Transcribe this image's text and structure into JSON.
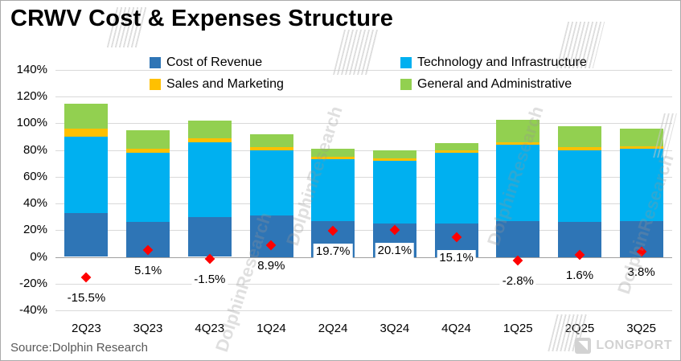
{
  "chart_data": {
    "type": "bar",
    "subtype": "stacked-columns-with-scatter-markers",
    "title": "CRWV Cost & Expenses Structure",
    "categories": [
      "2Q23",
      "3Q23",
      "4Q23",
      "1Q24",
      "2Q24",
      "3Q24",
      "4Q24",
      "1Q25",
      "2Q25",
      "3Q25"
    ],
    "series": [
      {
        "name": "Cost of Revenue",
        "color": "#2E75B6",
        "values": [
          33,
          26,
          30,
          31,
          27,
          25,
          25,
          27,
          26,
          27
        ]
      },
      {
        "name": "Technology and Infrastructure",
        "color": "#00B0F0",
        "values": [
          57,
          52,
          56,
          49,
          46,
          47,
          53,
          57,
          54,
          54
        ]
      },
      {
        "name": "Sales and Marketing",
        "color": "#FFC000",
        "values": [
          6,
          3,
          3,
          2,
          2,
          2,
          2,
          2,
          2,
          2
        ]
      },
      {
        "name": "General and Administrative",
        "color": "#92D050",
        "values": [
          19,
          14,
          13,
          10,
          6,
          6,
          5,
          17,
          16,
          13
        ]
      }
    ],
    "marker_series": {
      "color": "#FF0000",
      "values": [
        -15.5,
        5.1,
        -1.5,
        8.9,
        19.7,
        20.1,
        15.1,
        -2.8,
        1.6,
        3.8
      ],
      "labels": [
        "-15.5%",
        "5.1%",
        "-1.5%",
        "8.9%",
        "19.7%",
        "20.1%",
        "15.1%",
        "-2.8%",
        "1.6%",
        "3.8%"
      ]
    },
    "ylim": [
      -40,
      140
    ],
    "ytick_step": 20,
    "ytick_labels": [
      "140%",
      "120%",
      "100%",
      "80%",
      "60%",
      "40%",
      "20%",
      "0%",
      "-20%",
      "-40%"
    ],
    "grid": true,
    "grid_color": "#D9D9D9",
    "zero_axis_color": "#A0A0A0",
    "legend_position": "top, two columns"
  },
  "footer": {
    "source": "Source:Dolphin Research",
    "brand": "LONGPORT"
  },
  "watermark": {
    "text": "DolphinResearch"
  }
}
